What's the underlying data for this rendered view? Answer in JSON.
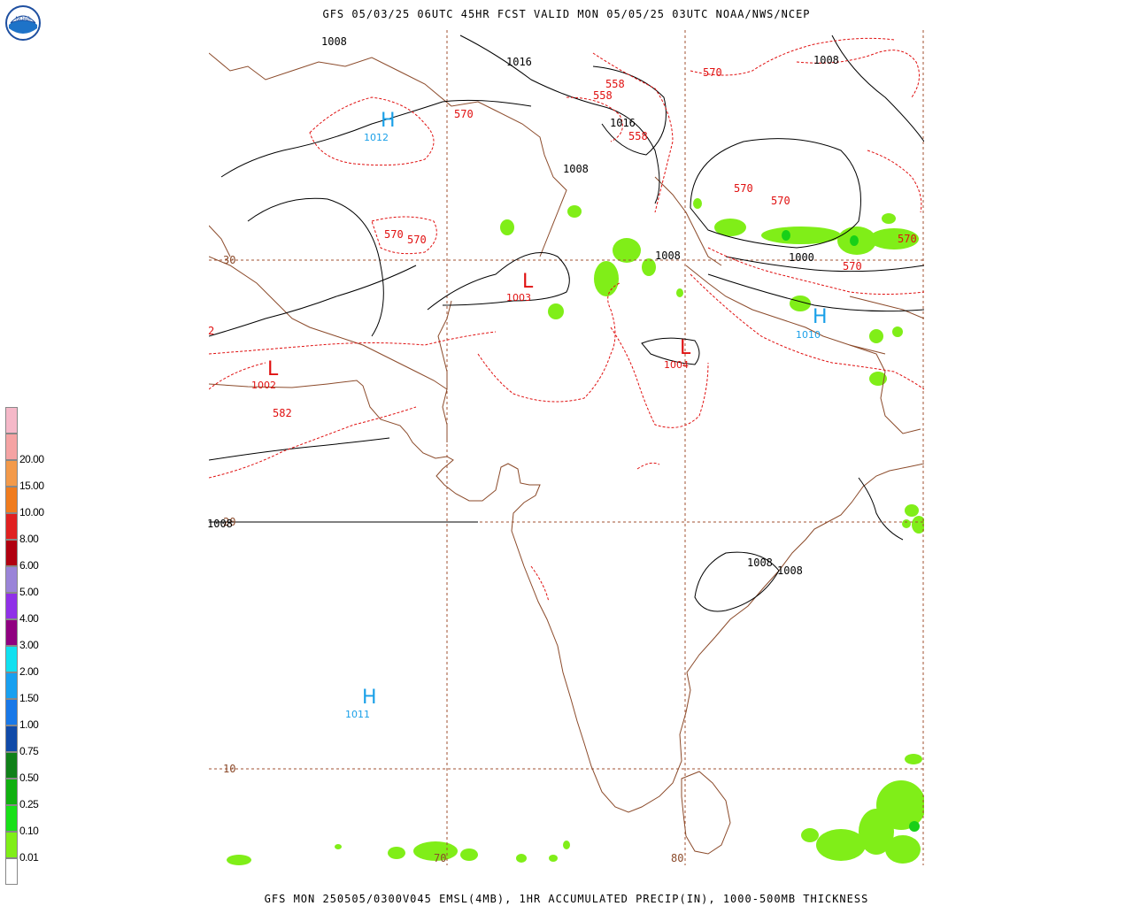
{
  "header": {
    "title": "GFS 05/03/25 06UTC 45HR FCST VALID MON 05/05/25 03UTC NOAA/NWS/NCEP"
  },
  "footer": {
    "title": "GFS MON 250505/0300V045 EMSL(4MB), 1HR ACCUMULATED PRECIP(IN), 1000-500MB THICKNESS"
  },
  "logo": {
    "name": "noaa-logo",
    "text": "NOAA"
  },
  "legend": {
    "items": [
      {
        "label": "",
        "color": "#f5b8c8"
      },
      {
        "label": "20.00",
        "color": "#f5a3a3"
      },
      {
        "label": "15.00",
        "color": "#f39a4a"
      },
      {
        "label": "10.00",
        "color": "#f07c1e"
      },
      {
        "label": "8.00",
        "color": "#e02020"
      },
      {
        "label": "6.00",
        "color": "#b00010"
      },
      {
        "label": "5.00",
        "color": "#9a84d8"
      },
      {
        "label": "4.00",
        "color": "#9030e8"
      },
      {
        "label": "3.00",
        "color": "#900080"
      },
      {
        "label": "2.00",
        "color": "#10e0f0"
      },
      {
        "label": "1.50",
        "color": "#18a0f0"
      },
      {
        "label": "1.00",
        "color": "#1878e8"
      },
      {
        "label": "0.75",
        "color": "#104aa8"
      },
      {
        "label": "0.50",
        "color": "#108018"
      },
      {
        "label": "0.25",
        "color": "#10b010"
      },
      {
        "label": "0.10",
        "color": "#18e018"
      },
      {
        "label": "0.01",
        "color": "#80ee18"
      },
      {
        "label": "",
        "color": "#ffffff"
      }
    ]
  },
  "grid_labels": {
    "lat30": "30",
    "lat20": "20",
    "lat10": "10",
    "lon70": "70",
    "lon80": "80"
  },
  "pressure_centers": [
    {
      "type": "H",
      "value": "1012",
      "color": "#1aa0e8"
    },
    {
      "type": "L",
      "value": "1003",
      "color": "#e01010"
    },
    {
      "type": "L",
      "value": "1004",
      "color": "#e01010"
    },
    {
      "type": "L",
      "value": "1002",
      "color": "#e01010"
    },
    {
      "type": "H",
      "value": "1010",
      "color": "#1aa0e8"
    },
    {
      "type": "H",
      "value": "1011",
      "color": "#1aa0e8"
    }
  ],
  "isobar_labels": [
    "1008",
    "1016",
    "1008",
    "1016",
    "1008",
    "1008",
    "1000",
    "1008",
    "1008",
    "1008"
  ],
  "thickness_labels": [
    "570",
    "570",
    "558",
    "558",
    "558",
    "570",
    "570",
    "570",
    "570",
    "570",
    "570",
    "582",
    "2"
  ],
  "colors": {
    "coast": "#8b4a2a",
    "isobar": "#000000",
    "thickness": "#e01010",
    "grid": "#a05030"
  }
}
